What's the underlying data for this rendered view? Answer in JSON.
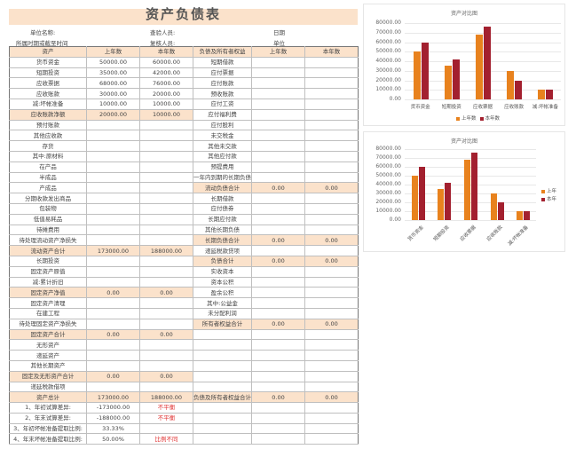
{
  "sheet": {
    "title": "资产负债表",
    "meta": {
      "unit_name_label": "单位名称:",
      "period_label": "所属时期或截至时间",
      "checker_label": "查验人员:",
      "reviewer_label": "复核人员:",
      "date_label": "日期",
      "unit_label": "单位"
    },
    "headers": [
      "资产",
      "上年数",
      "本年数",
      "负债及所有者权益",
      "上年数",
      "本年数"
    ],
    "rows": [
      {
        "a": "货币资金",
        "a1": "50000.00",
        "a2": "60000.00",
        "b": "短期借款",
        "b1": "",
        "b2": "",
        "ah": false,
        "bh": false
      },
      {
        "a": "短期投资",
        "a1": "35000.00",
        "a2": "42000.00",
        "b": "应付票据",
        "b1": "",
        "b2": "",
        "ah": false,
        "bh": false
      },
      {
        "a": "应收票据",
        "a1": "68000.00",
        "a2": "76000.00",
        "b": "应付账款",
        "b1": "",
        "b2": "",
        "ah": false,
        "bh": false
      },
      {
        "a": "应收账款",
        "a1": "30000.00",
        "a2": "20000.00",
        "b": "预收账款",
        "b1": "",
        "b2": "",
        "ah": false,
        "bh": false
      },
      {
        "a": "减:坏帐准备",
        "a1": "10000.00",
        "a2": "10000.00",
        "b": "应付工资",
        "b1": "",
        "b2": "",
        "ah": false,
        "bh": false
      },
      {
        "a": "应收账款净额",
        "a1": "20000.00",
        "a2": "10000.00",
        "b": "应付福利费",
        "b1": "",
        "b2": "",
        "ah": true,
        "bh": false
      },
      {
        "a": "预付账款",
        "a1": "",
        "a2": "",
        "b": "应付股利",
        "b1": "",
        "b2": "",
        "ah": false,
        "bh": false
      },
      {
        "a": "其他应收款",
        "a1": "",
        "a2": "",
        "b": "未交税金",
        "b1": "",
        "b2": "",
        "ah": false,
        "bh": false
      },
      {
        "a": "存货",
        "a1": "",
        "a2": "",
        "b": "其他未交款",
        "b1": "",
        "b2": "",
        "ah": false,
        "bh": false
      },
      {
        "a": "其中:原材料",
        "a1": "",
        "a2": "",
        "b": "其他应付款",
        "b1": "",
        "b2": "",
        "ah": false,
        "bh": false
      },
      {
        "a": "在产品",
        "a1": "",
        "a2": "",
        "b": "预提费用",
        "b1": "",
        "b2": "",
        "ah": false,
        "bh": false
      },
      {
        "a": "半成品",
        "a1": "",
        "a2": "",
        "b": "一年内到期的长期负债",
        "b1": "",
        "b2": "",
        "ah": false,
        "bh": false
      },
      {
        "a": "产成品",
        "a1": "",
        "a2": "",
        "b": "流动负债合计",
        "b1": "0.00",
        "b2": "0.00",
        "ah": false,
        "bh": true
      },
      {
        "a": "分期收款发出商品",
        "a1": "",
        "a2": "",
        "b": "长期借款",
        "b1": "",
        "b2": "",
        "ah": false,
        "bh": false
      },
      {
        "a": "包装物",
        "a1": "",
        "a2": "",
        "b": "应付债券",
        "b1": "",
        "b2": "",
        "ah": false,
        "bh": false
      },
      {
        "a": "低值易耗品",
        "a1": "",
        "a2": "",
        "b": "长期应付款",
        "b1": "",
        "b2": "",
        "ah": false,
        "bh": false
      },
      {
        "a": "待摊费用",
        "a1": "",
        "a2": "",
        "b": "其他长期负债",
        "b1": "",
        "b2": "",
        "ah": false,
        "bh": false
      },
      {
        "a": "待处理流动资产净损失",
        "a1": "",
        "a2": "",
        "b": "长期负债合计",
        "b1": "0.00",
        "b2": "0.00",
        "ah": false,
        "bh": true
      },
      {
        "a": "流动资产合计",
        "a1": "173000.00",
        "a2": "188000.00",
        "b": "递延税款贷项",
        "b1": "",
        "b2": "",
        "ah": true,
        "bh": false
      },
      {
        "a": "长期投资",
        "a1": "",
        "a2": "",
        "b": "负债合计",
        "b1": "0.00",
        "b2": "0.00",
        "ah": false,
        "bh": true
      },
      {
        "a": "固定资产原值",
        "a1": "",
        "a2": "",
        "b": "实收资本",
        "b1": "",
        "b2": "",
        "ah": false,
        "bh": false
      },
      {
        "a": "减:累计折旧",
        "a1": "",
        "a2": "",
        "b": "资本公积",
        "b1": "",
        "b2": "",
        "ah": false,
        "bh": false
      },
      {
        "a": "固定资产净值",
        "a1": "0.00",
        "a2": "0.00",
        "b": "盈余公积",
        "b1": "",
        "b2": "",
        "ah": true,
        "bh": false
      },
      {
        "a": "固定资产清理",
        "a1": "",
        "a2": "",
        "b": "其中:公益金",
        "b1": "",
        "b2": "",
        "ah": false,
        "bh": false
      },
      {
        "a": "在建工程",
        "a1": "",
        "a2": "",
        "b": "未分配利润",
        "b1": "",
        "b2": "",
        "ah": false,
        "bh": false
      },
      {
        "a": "待处理固定资产净损失",
        "a1": "",
        "a2": "",
        "b": "所有者权益合计",
        "b1": "0.00",
        "b2": "0.00",
        "ah": false,
        "bh": true
      },
      {
        "a": "固定资产合计",
        "a1": "0.00",
        "a2": "0.00",
        "b": "",
        "b1": "",
        "b2": "",
        "ah": true,
        "bh": false
      },
      {
        "a": "无形资产",
        "a1": "",
        "a2": "",
        "b": "",
        "b1": "",
        "b2": "",
        "ah": false,
        "bh": false
      },
      {
        "a": "递延资产",
        "a1": "",
        "a2": "",
        "b": "",
        "b1": "",
        "b2": "",
        "ah": false,
        "bh": false
      },
      {
        "a": "其他长期资产",
        "a1": "",
        "a2": "",
        "b": "",
        "b1": "",
        "b2": "",
        "ah": false,
        "bh": false
      },
      {
        "a": "固定及无形资产合计",
        "a1": "0.00",
        "a2": "0.00",
        "b": "",
        "b1": "",
        "b2": "",
        "ah": true,
        "bh": false
      },
      {
        "a": "递延税款借项",
        "a1": "",
        "a2": "",
        "b": "",
        "b1": "",
        "b2": "",
        "ah": false,
        "bh": false
      },
      {
        "a": "资产总计",
        "a1": "173000.00",
        "a2": "188000.00",
        "b": "负债及所有者权益合计",
        "b1": "0.00",
        "b2": "0.00",
        "ah": true,
        "bh": true,
        "total": true
      }
    ],
    "checks": [
      {
        "label": "1、年初试算差异:",
        "value": "-173000.00",
        "status": "不平衡"
      },
      {
        "label": "2、年末试算差异:",
        "value": "-188000.00",
        "status": "不平衡"
      },
      {
        "label": "3、年初坏帐准备提取比例:",
        "value": "33.33%",
        "status": ""
      },
      {
        "label": "4、年末坏帐准备提取比例:",
        "value": "50.00%",
        "status": "比例不同"
      }
    ]
  },
  "colors": {
    "header_fill": "#fbe2cb",
    "series_prev": "#e8821e",
    "series_curr": "#a3202f",
    "warning_text": "#e03030"
  },
  "chart_data": [
    {
      "type": "bar",
      "title": "资产对比图",
      "categories": [
        "货币资金",
        "短期投资",
        "应收票据",
        "应收账款",
        "减:坏帐准备"
      ],
      "series": [
        {
          "name": "上年数",
          "values": [
            50000,
            35000,
            68000,
            30000,
            10000
          ]
        },
        {
          "name": "本年数",
          "values": [
            60000,
            42000,
            76000,
            20000,
            10000
          ]
        }
      ],
      "yticks": [
        "80000.00",
        "70000.00",
        "60000.00",
        "50000.00",
        "40000.00",
        "30000.00",
        "20000.00",
        "10000.00",
        "0.00"
      ],
      "ylim": [
        0,
        80000
      ],
      "grid": true,
      "legend_position": "bottom"
    },
    {
      "type": "bar",
      "title": "资产对比图",
      "categories": [
        "货币资金",
        "短期投资",
        "应收票据",
        "应收账款",
        "减:坏帐准备"
      ],
      "series": [
        {
          "name": "上年数",
          "values": [
            50000,
            35000,
            68000,
            30000,
            10000
          ]
        },
        {
          "name": "本年数",
          "values": [
            60000,
            42000,
            76000,
            20000,
            10000
          ]
        }
      ],
      "legend_labels_visible": [
        "上年",
        "本年"
      ],
      "yticks": [
        "80000.00",
        "70000.00",
        "60000.00",
        "50000.00",
        "40000.00",
        "30000.00",
        "20000.00",
        "10000.00",
        "0.00"
      ],
      "ylim": [
        0,
        80000
      ],
      "grid": true,
      "legend_position": "right",
      "xlabel_rotation": -45
    }
  ]
}
